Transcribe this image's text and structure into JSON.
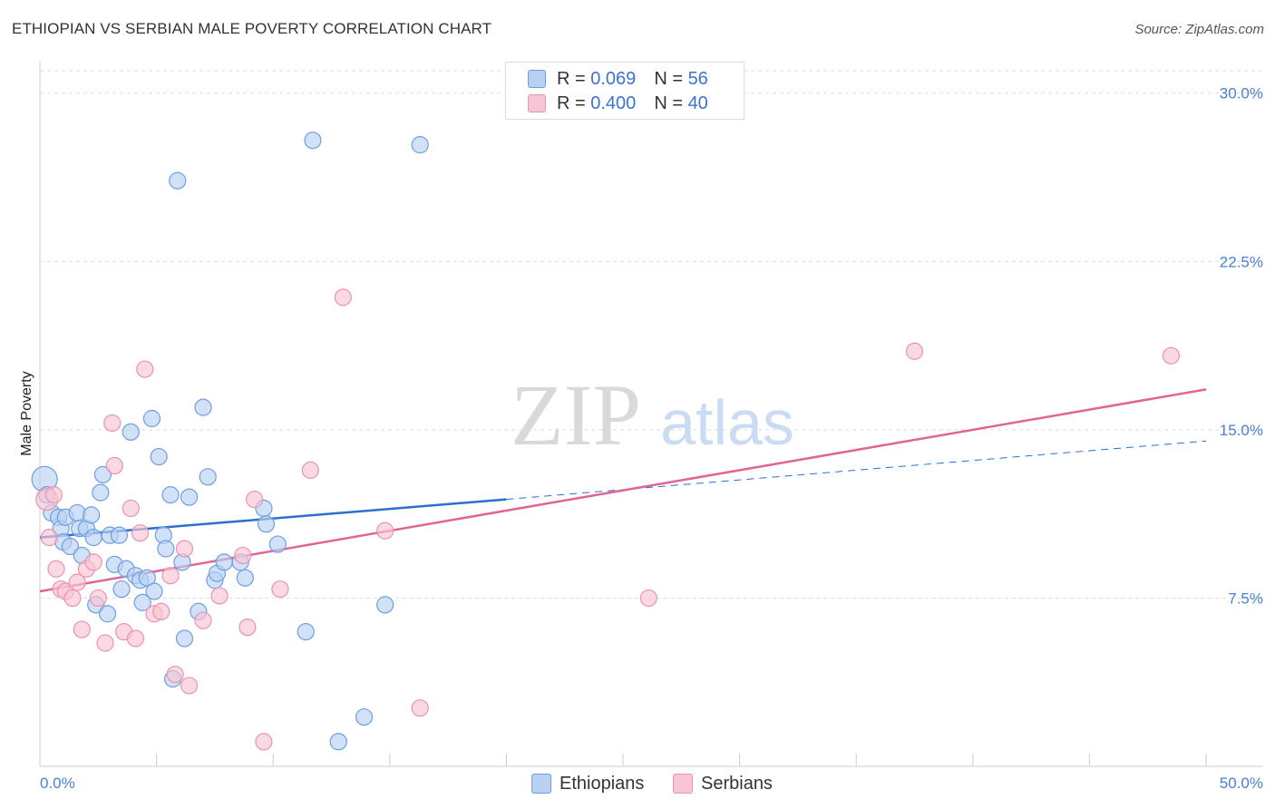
{
  "header": {
    "title": "ETHIOPIAN VS SERBIAN MALE POVERTY CORRELATION CHART",
    "source": "Source: ZipAtlas.com"
  },
  "watermark": {
    "zip": "ZIP",
    "atlas": "atlas"
  },
  "stats_legend": [
    {
      "r_label": "R = ",
      "r_value": "0.069",
      "n_label": "N = ",
      "n_value": "56"
    },
    {
      "r_label": "R = ",
      "r_value": "0.400",
      "n_label": "N = ",
      "n_value": "40"
    }
  ],
  "bottom_legend": [
    {
      "label": "Ethiopians"
    },
    {
      "label": "Serbians"
    }
  ],
  "colors": {
    "ethiopians_fill": "#b8d1f3",
    "ethiopians_stroke": "#6f9ee0",
    "ethiopians_line": "#2b6fd0",
    "serbians_fill": "#f7c5d4",
    "serbians_stroke": "#ea93b0",
    "serbians_line": "#e06593",
    "tick_label": "#4a7fd4"
  },
  "chart_data": {
    "type": "scatter",
    "title": "ETHIOPIAN VS SERBIAN MALE POVERTY CORRELATION CHART",
    "xlabel": "",
    "ylabel": "Male Poverty",
    "xlim": [
      0,
      50
    ],
    "ylim": [
      0,
      31
    ],
    "x_tick_labels": [
      "0.0%",
      "50.0%"
    ],
    "y_ticks": [
      7.5,
      15.0,
      22.5,
      30.0
    ],
    "y_tick_labels": [
      "7.5%",
      "15.0%",
      "22.5%",
      "30.0%"
    ],
    "grid": true,
    "legend_position": "top-center",
    "series": [
      {
        "name": "Ethiopians",
        "points": [
          [
            0.2,
            12.8
          ],
          [
            0.3,
            12.1
          ],
          [
            0.5,
            11.3
          ],
          [
            0.8,
            11.1
          ],
          [
            0.9,
            10.6
          ],
          [
            1.0,
            10.0
          ],
          [
            1.1,
            11.1
          ],
          [
            1.3,
            9.8
          ],
          [
            1.6,
            11.3
          ],
          [
            1.7,
            10.6
          ],
          [
            1.8,
            9.4
          ],
          [
            2.0,
            10.6
          ],
          [
            2.2,
            11.2
          ],
          [
            2.3,
            10.2
          ],
          [
            2.4,
            7.2
          ],
          [
            2.6,
            12.2
          ],
          [
            2.7,
            13.0
          ],
          [
            2.9,
            6.8
          ],
          [
            3.0,
            10.3
          ],
          [
            3.2,
            9.0
          ],
          [
            3.4,
            10.3
          ],
          [
            3.5,
            7.9
          ],
          [
            3.7,
            8.8
          ],
          [
            3.9,
            14.9
          ],
          [
            4.1,
            8.5
          ],
          [
            4.3,
            8.3
          ],
          [
            4.4,
            7.3
          ],
          [
            4.6,
            8.4
          ],
          [
            4.8,
            15.5
          ],
          [
            4.9,
            7.8
          ],
          [
            5.1,
            13.8
          ],
          [
            5.3,
            10.3
          ],
          [
            5.4,
            9.7
          ],
          [
            5.6,
            12.1
          ],
          [
            5.7,
            3.9
          ],
          [
            5.9,
            26.1
          ],
          [
            6.1,
            9.1
          ],
          [
            6.2,
            5.7
          ],
          [
            6.4,
            12.0
          ],
          [
            6.8,
            6.9
          ],
          [
            7.0,
            16.0
          ],
          [
            7.2,
            12.9
          ],
          [
            7.5,
            8.3
          ],
          [
            7.6,
            8.6
          ],
          [
            7.9,
            9.1
          ],
          [
            8.6,
            9.1
          ],
          [
            8.8,
            8.4
          ],
          [
            9.6,
            11.5
          ],
          [
            9.7,
            10.8
          ],
          [
            10.2,
            9.9
          ],
          [
            11.4,
            6.0
          ],
          [
            11.7,
            27.9
          ],
          [
            12.8,
            1.1
          ],
          [
            13.9,
            2.2
          ],
          [
            14.8,
            7.2
          ],
          [
            16.3,
            27.7
          ]
        ]
      },
      {
        "name": "Serbians",
        "points": [
          [
            0.3,
            11.9
          ],
          [
            0.4,
            10.2
          ],
          [
            0.6,
            12.1
          ],
          [
            0.7,
            8.8
          ],
          [
            0.9,
            7.9
          ],
          [
            1.1,
            7.8
          ],
          [
            1.4,
            7.5
          ],
          [
            1.6,
            8.2
          ],
          [
            1.8,
            6.1
          ],
          [
            2.0,
            8.8
          ],
          [
            2.3,
            9.1
          ],
          [
            2.5,
            7.5
          ],
          [
            2.8,
            5.5
          ],
          [
            3.1,
            15.3
          ],
          [
            3.2,
            13.4
          ],
          [
            3.6,
            6.0
          ],
          [
            3.9,
            11.5
          ],
          [
            4.1,
            5.7
          ],
          [
            4.3,
            10.4
          ],
          [
            4.5,
            17.7
          ],
          [
            4.9,
            6.8
          ],
          [
            5.2,
            6.9
          ],
          [
            5.6,
            8.5
          ],
          [
            5.8,
            4.1
          ],
          [
            6.2,
            9.7
          ],
          [
            6.4,
            3.6
          ],
          [
            7.0,
            6.5
          ],
          [
            7.7,
            7.6
          ],
          [
            8.7,
            9.4
          ],
          [
            8.9,
            6.2
          ],
          [
            9.2,
            11.9
          ],
          [
            9.6,
            1.1
          ],
          [
            10.3,
            7.9
          ],
          [
            11.6,
            13.2
          ],
          [
            13.0,
            20.9
          ],
          [
            14.8,
            10.5
          ],
          [
            16.3,
            2.6
          ],
          [
            26.1,
            7.5
          ],
          [
            37.5,
            18.5
          ],
          [
            48.5,
            18.3
          ]
        ]
      }
    ],
    "trend_lines": [
      {
        "series": "Ethiopians",
        "x": [
          0,
          20
        ],
        "y": [
          10.2,
          11.9
        ],
        "dashed_extension_to_x": 50,
        "dashed_end_y": 14.5
      },
      {
        "series": "Serbians",
        "x": [
          0,
          50
        ],
        "y": [
          7.8,
          16.8
        ]
      }
    ]
  }
}
